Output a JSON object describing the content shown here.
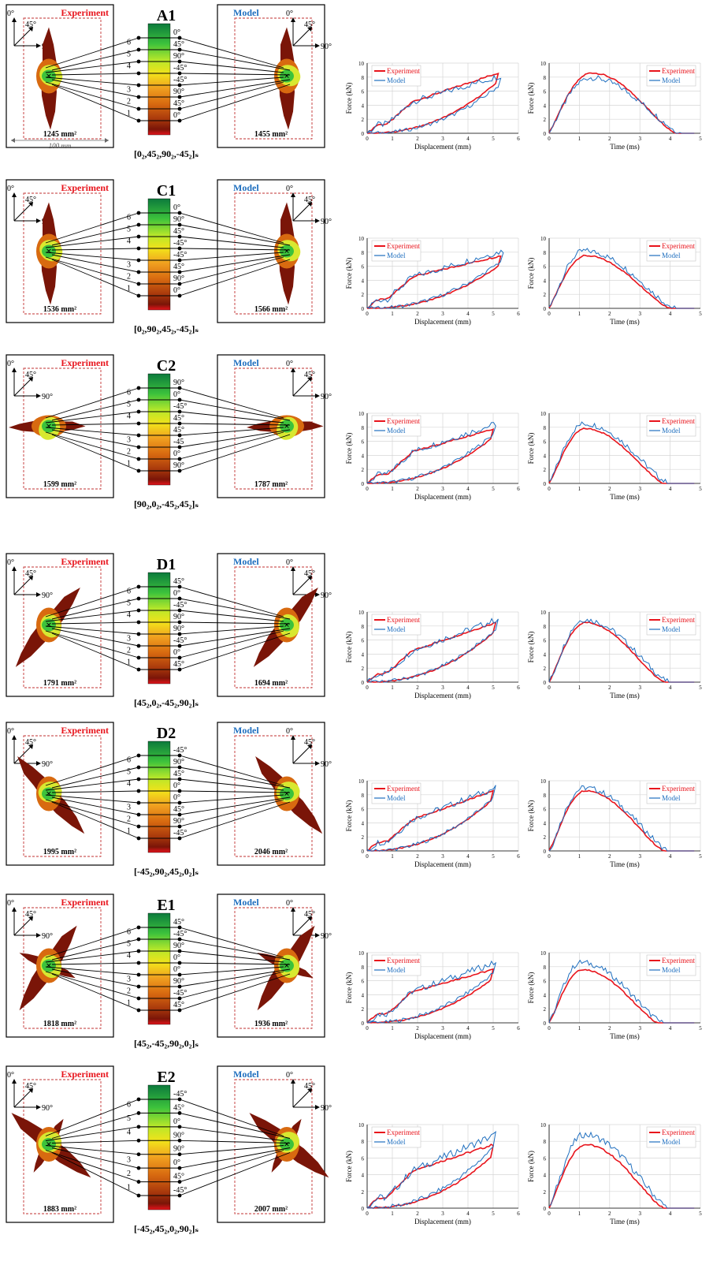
{
  "labels": {
    "experiment": "Experiment",
    "model": "Model",
    "force_axis": "Force (kN)",
    "displacement_axis": "Displacement (mm)",
    "time_axis": "Time (ms)",
    "width_label": "100 mm",
    "orient_0": "0°",
    "orient_45": "45°",
    "orient_90": "90°"
  },
  "colors": {
    "experiment": "#e8141c",
    "model": "#1f6fbf",
    "damage_dark": "#7a1508",
    "damage_mid": "#d86a10",
    "damage_light": "#d8e830",
    "damage_core": "#3cc23c"
  },
  "specimens": [
    {
      "id": "A1",
      "layup": "[0₂,45₂,90₂,-45₂]ₛ",
      "exp_area": "1245 mm²",
      "model_area": "1455 mm²",
      "plies": [
        "0°",
        "45°",
        "90°",
        "-45°",
        "-45°",
        "90°",
        "45°",
        "0°"
      ],
      "shape": "vertical",
      "disp_peak_exp": 8.6,
      "disp_peak_model": 8.2,
      "time_peak_exp": 8.6,
      "time_peak_model": 7.9,
      "max_disp": 5.2
    },
    {
      "id": "C1",
      "layup": "[0₂,90₂,45₂,-45₂]ₛ",
      "exp_area": "1536 mm²",
      "model_area": "1566 mm²",
      "plies": [
        "0°",
        "90°",
        "45°",
        "-45°",
        "-45°",
        "45°",
        "90°",
        "0°"
      ],
      "shape": "vertical",
      "disp_peak_exp": 7.5,
      "disp_peak_model": 8.2,
      "time_peak_exp": 7.5,
      "time_peak_model": 8.2,
      "max_disp": 5.3
    },
    {
      "id": "C2",
      "layup": "[90₂,0₂,-45₂,45₂]ₛ",
      "exp_area": "1599 mm²",
      "model_area": "1787 mm²",
      "plies": [
        "90°",
        "0°",
        "-45°",
        "45°",
        "45°",
        "-45",
        "0°",
        "90°"
      ],
      "shape": "horizontal",
      "disp_peak_exp": 7.8,
      "disp_peak_model": 8.5,
      "time_peak_exp": 7.8,
      "time_peak_model": 8.5,
      "max_disp": 5.0
    },
    {
      "id": "D1",
      "layup": "[45₂,0₂,-45₂,90₂]ₛ",
      "exp_area": "1791 mm²",
      "model_area": "1694 mm²",
      "plies": [
        "45°",
        "0°",
        "-45°",
        "90°",
        "90°",
        "-45°",
        "0°",
        "45°"
      ],
      "shape": "diag45",
      "disp_peak_exp": 8.5,
      "disp_peak_model": 9.0,
      "time_peak_exp": 8.5,
      "time_peak_model": 8.9,
      "max_disp": 5.1
    },
    {
      "id": "D2",
      "layup": "[-45₂,90₂,45₂,0₂]ₛ",
      "exp_area": "1995 mm²",
      "model_area": "2046 mm²",
      "plies": [
        "-45°",
        "90°",
        "45°",
        "0°",
        "0°",
        "45°",
        "90°",
        "-45°"
      ],
      "shape": "diagm45",
      "disp_peak_exp": 8.6,
      "disp_peak_model": 9.0,
      "time_peak_exp": 8.6,
      "time_peak_model": 9.0,
      "max_disp": 5.0
    },
    {
      "id": "E1",
      "layup": "[45₂,-45₂,90₂,0₂]ₛ",
      "exp_area": "1818 mm²",
      "model_area": "1936 mm²",
      "plies": [
        "45°",
        "-45°",
        "90°",
        "0°",
        "0°",
        "90°",
        "-45°",
        "45°"
      ],
      "shape": "cross",
      "disp_peak_exp": 7.6,
      "disp_peak_model": 8.6,
      "time_peak_exp": 7.6,
      "time_peak_model": 8.6,
      "max_disp": 5.0
    },
    {
      "id": "E2",
      "layup": "[-45₂,45₂,0₂,90₂]ₛ",
      "exp_area": "1883 mm²",
      "model_area": "2007 mm²",
      "plies": [
        "-45°",
        "45°",
        "0°",
        "90°",
        "90°",
        "0°",
        "45°",
        "-45°"
      ],
      "shape": "cross2",
      "disp_peak_exp": 7.6,
      "disp_peak_model": 8.8,
      "time_peak_exp": 7.6,
      "time_peak_model": 8.8,
      "max_disp": 5.0
    }
  ],
  "chart_data": [
    {
      "type": "line",
      "chart": "force-displacement",
      "xlabel": "Displacement (mm)",
      "ylabel": "Force (kN)",
      "xlim": [
        0,
        6
      ],
      "ylim": [
        0,
        10
      ],
      "xticks": [
        0,
        1,
        2,
        3,
        4,
        5,
        6
      ],
      "yticks": [
        0,
        2,
        4,
        6,
        8,
        10
      ],
      "series": [
        {
          "name": "Experiment"
        },
        {
          "name": "Model"
        }
      ],
      "specimens": [
        "A1",
        "C1",
        "C2",
        "D1",
        "D2",
        "E1",
        "E2"
      ],
      "peak_force_experiment": [
        8.6,
        7.5,
        7.8,
        8.5,
        8.6,
        7.6,
        7.6
      ],
      "peak_force_model": [
        8.2,
        8.2,
        8.5,
        9.0,
        9.0,
        8.6,
        8.8
      ],
      "max_displacement": [
        5.2,
        5.3,
        5.0,
        5.1,
        5.0,
        5.0,
        5.0
      ]
    },
    {
      "type": "line",
      "chart": "force-time",
      "xlabel": "Time (ms)",
      "ylabel": "Force (kN)",
      "xlim": [
        0,
        5
      ],
      "ylim": [
        0,
        10
      ],
      "xticks": [
        0,
        1,
        2,
        3,
        4,
        5
      ],
      "yticks": [
        0,
        2,
        4,
        6,
        8,
        10
      ],
      "series": [
        {
          "name": "Experiment"
        },
        {
          "name": "Model"
        }
      ],
      "specimens": [
        "A1",
        "C1",
        "C2",
        "D1",
        "D2",
        "E1",
        "E2"
      ],
      "peak_force_experiment": [
        8.6,
        7.5,
        7.8,
        8.5,
        8.6,
        7.6,
        7.6
      ],
      "peak_force_model": [
        7.9,
        8.2,
        8.5,
        8.9,
        9.0,
        8.6,
        8.8
      ],
      "peak_time": [
        1.4,
        1.2,
        1.2,
        1.2,
        1.2,
        1.1,
        1.2
      ],
      "end_time": [
        4.2,
        4.0,
        3.8,
        3.8,
        3.8,
        3.6,
        3.8
      ]
    }
  ]
}
